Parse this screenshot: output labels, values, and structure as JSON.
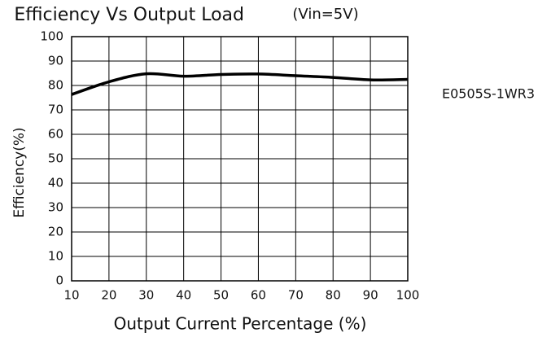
{
  "chart_data": {
    "type": "line",
    "title": "Efficiency Vs Output Load",
    "subtitle": "(Vin=5V)",
    "x_label": "Output Current Percentage (%)",
    "y_label": "Efficiency(%)",
    "annotation": "E0505S-1WR3",
    "x": [
      10,
      20,
      30,
      40,
      50,
      60,
      70,
      80,
      90,
      100
    ],
    "series": [
      {
        "name": "E0505S-1WR3",
        "color": "#000000",
        "values": [
          76.3,
          81.5,
          84.8,
          83.8,
          84.5,
          84.7,
          84.0,
          83.3,
          82.3,
          82.5
        ]
      }
    ],
    "xlim": [
      10,
      100
    ],
    "xticks": [
      10,
      20,
      30,
      40,
      50,
      60,
      70,
      80,
      90,
      100
    ],
    "ylim": [
      0,
      100
    ],
    "yticks": [
      0,
      10,
      20,
      30,
      40,
      50,
      60,
      70,
      80,
      90,
      100
    ],
    "grid": true
  }
}
